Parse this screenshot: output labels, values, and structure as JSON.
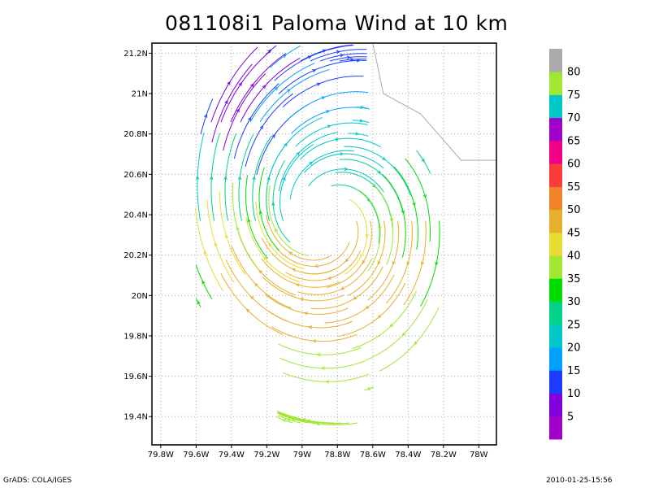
{
  "chart_data": {
    "type": "streamline",
    "title": "081108i1 Paloma Wind at 10 km",
    "xlim": [
      -79.85,
      -77.9
    ],
    "ylim": [
      19.26,
      21.25
    ],
    "x_ticks": [
      {
        "value": -79.8,
        "label": "79.8W"
      },
      {
        "value": -79.6,
        "label": "79.6W"
      },
      {
        "value": -79.4,
        "label": "79.4W"
      },
      {
        "value": -79.2,
        "label": "79.2W"
      },
      {
        "value": -79.0,
        "label": "79W"
      },
      {
        "value": -78.8,
        "label": "78.8W"
      },
      {
        "value": -78.6,
        "label": "78.6W"
      },
      {
        "value": -78.4,
        "label": "78.4W"
      },
      {
        "value": -78.2,
        "label": "78.2W"
      },
      {
        "value": -78.0,
        "label": "78W"
      }
    ],
    "y_ticks": [
      {
        "value": 19.4,
        "label": "19.4N"
      },
      {
        "value": 19.6,
        "label": "19.6N"
      },
      {
        "value": 19.8,
        "label": "19.8N"
      },
      {
        "value": 20.0,
        "label": "20N"
      },
      {
        "value": 20.2,
        "label": "20.2N"
      },
      {
        "value": 20.4,
        "label": "20.4N"
      },
      {
        "value": 20.6,
        "label": "20.6N"
      },
      {
        "value": 20.8,
        "label": "20.8N"
      },
      {
        "value": 21.0,
        "label": "21N"
      },
      {
        "value": 21.2,
        "label": "21.2N"
      }
    ],
    "grid": true,
    "vortex_center": {
      "lon": -78.9,
      "lat": 20.37
    },
    "coastline": [
      [
        -78.6,
        21.25
      ],
      [
        -78.54,
        21.0
      ],
      [
        -78.33,
        20.9
      ],
      [
        -78.1,
        20.67
      ],
      [
        -77.9,
        20.67
      ]
    ],
    "colorbar": {
      "colors": [
        "#a000c8",
        "#8200dc",
        "#1e3cff",
        "#00a0ff",
        "#00c8c8",
        "#00d28c",
        "#00dc00",
        "#a0e632",
        "#e6dc32",
        "#e6af2d",
        "#f08228",
        "#fa3c3c",
        "#f00082",
        "#a000c8",
        "#00c8c8",
        "#a0e632",
        "#aaaaaa"
      ],
      "labels": [
        "5",
        "10",
        "15",
        "20",
        "25",
        "30",
        "35",
        "40",
        "45",
        "50",
        "55",
        "60",
        "65",
        "70",
        "75",
        "80"
      ]
    }
  },
  "footer": {
    "left": "GrADS: COLA/IGES",
    "right": "2010-01-25-15:56"
  }
}
